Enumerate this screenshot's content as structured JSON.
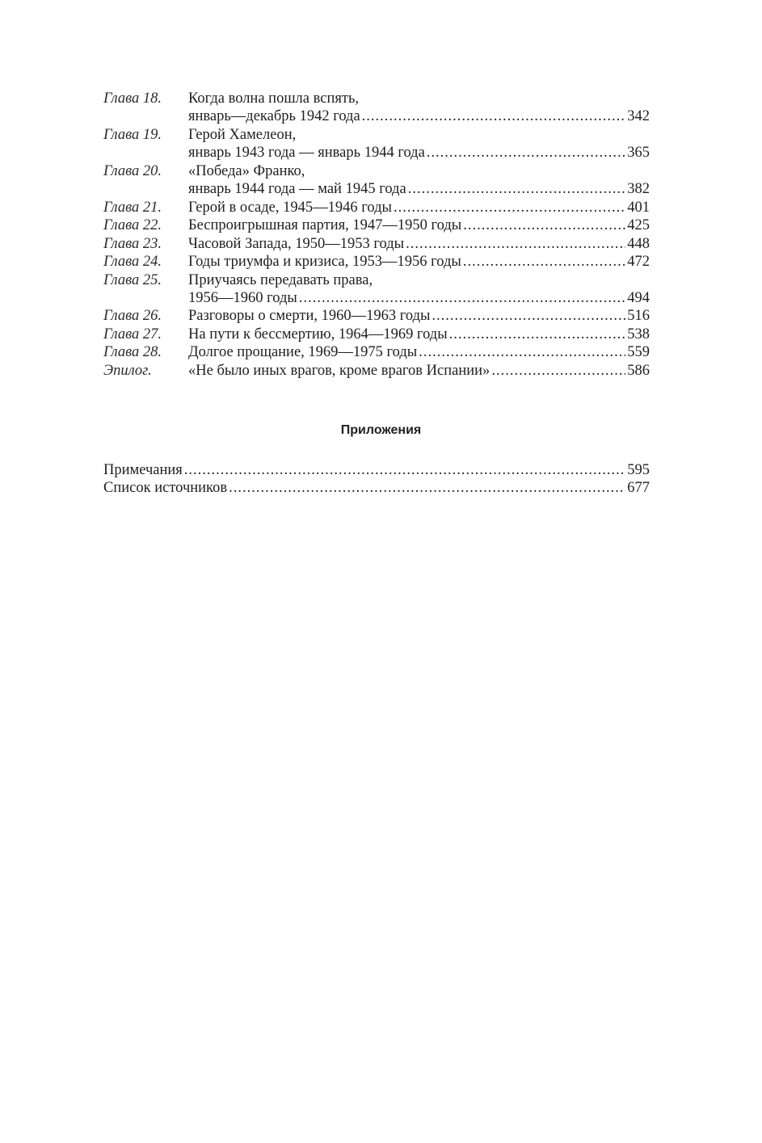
{
  "toc": [
    {
      "label": "Глава 18.",
      "lines": [
        "Когда волна пошла вспять,",
        "январь—декабрь 1942 года"
      ],
      "page": "342"
    },
    {
      "label": "Глава 19.",
      "lines": [
        "Герой Хамелеон,",
        "январь 1943 года — январь 1944 года"
      ],
      "page": "365"
    },
    {
      "label": "Глава 20.",
      "lines": [
        "«Победа» Франко,",
        "январь 1944 года — май 1945 года"
      ],
      "page": "382"
    },
    {
      "label": "Глава 21.",
      "lines": [
        "Герой в осаде, 1945—1946 годы"
      ],
      "page": "401"
    },
    {
      "label": "Глава 22.",
      "lines": [
        "Беспроигрышная партия, 1947—1950 годы"
      ],
      "page": "425"
    },
    {
      "label": "Глава 23.",
      "lines": [
        "Часовой Запада, 1950—1953 годы"
      ],
      "page": "448"
    },
    {
      "label": "Глава 24.",
      "lines": [
        "Годы триумфа и кризиса, 1953—1956 годы"
      ],
      "page": "472"
    },
    {
      "label": "Глава 25.",
      "lines": [
        "Приучаясь передавать права,",
        "1956—1960 годы"
      ],
      "page": "494"
    },
    {
      "label": "Глава 26.",
      "lines": [
        "Разговоры о смерти, 1960—1963 годы"
      ],
      "page": "516"
    },
    {
      "label": "Глава 27.",
      "lines": [
        "На пути к бессмертию, 1964—1969 годы"
      ],
      "page": "538"
    },
    {
      "label": "Глава 28.",
      "lines": [
        "Долгое прощание, 1969—1975 годы"
      ],
      "page": "559"
    },
    {
      "label": "Эпилог.",
      "lines": [
        "«Не было иных врагов, кроме врагов Испании»"
      ],
      "page": "586"
    }
  ],
  "appendix": {
    "heading": "Приложения",
    "items": [
      {
        "title": "Примечания",
        "page": "595"
      },
      {
        "title": "Список источников",
        "page": "677"
      }
    ]
  }
}
